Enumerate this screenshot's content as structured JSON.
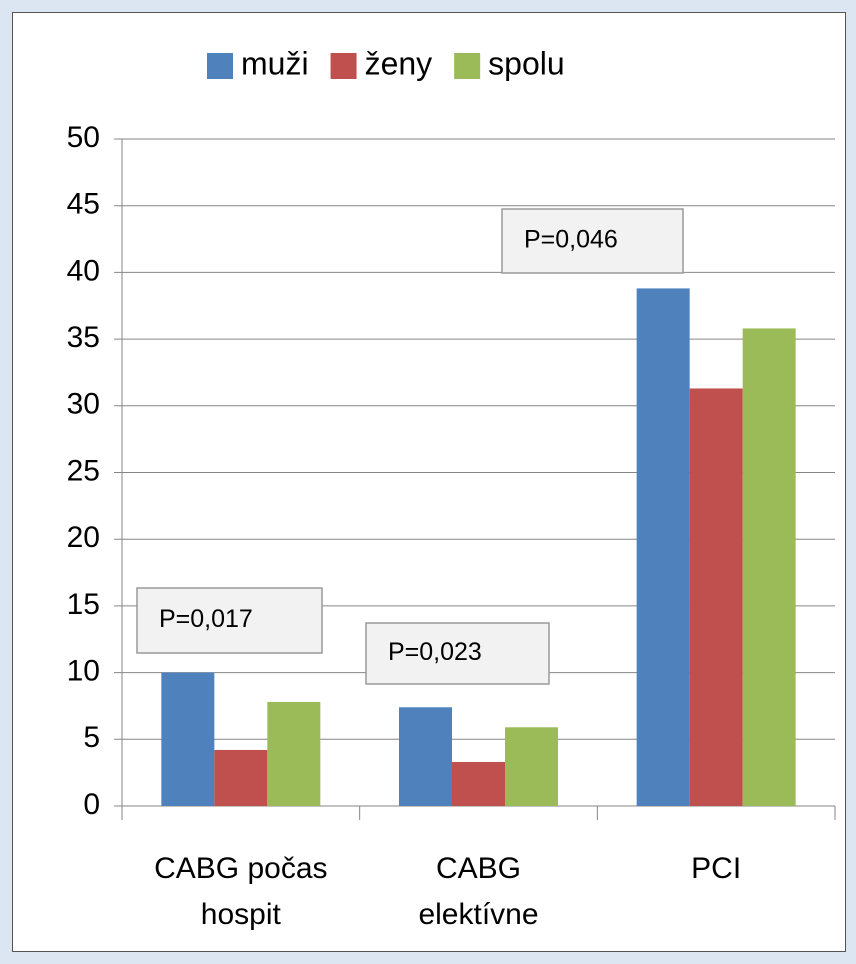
{
  "chart_data": {
    "type": "bar",
    "categories": [
      "CABG počas hospit",
      "CABG elektívne",
      "PCI"
    ],
    "series": [
      {
        "name": "muži",
        "color": "#4f81bd",
        "values": [
          10,
          7.4,
          38.8
        ]
      },
      {
        "name": "ženy",
        "color": "#c0504d",
        "values": [
          4.2,
          3.3,
          31.3
        ]
      },
      {
        "name": "spolu",
        "color": "#9bbb59",
        "values": [
          7.8,
          5.9,
          35.8
        ]
      }
    ],
    "annotations": [
      "P=0,017",
      "P=0,023",
      "P=0,046"
    ],
    "ylim": [
      0,
      50
    ],
    "yticks": [
      0,
      5,
      10,
      15,
      20,
      25,
      30,
      35,
      40,
      45,
      50
    ],
    "grid": true,
    "legend": "top"
  }
}
